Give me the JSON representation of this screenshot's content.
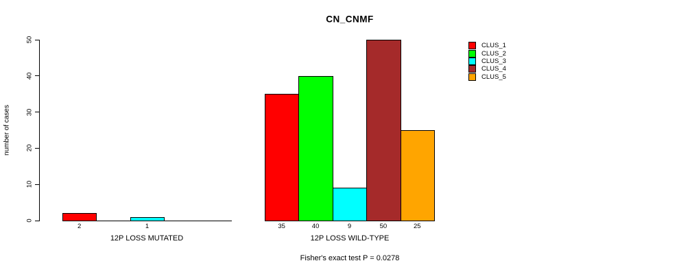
{
  "chart_data": {
    "type": "bar",
    "title": "CN_CNMF",
    "xlabel": "",
    "ylabel": "number of cases",
    "ylim": [
      0,
      50
    ],
    "yticks": [
      0,
      10,
      20,
      30,
      40,
      50
    ],
    "grid": false,
    "legend_position": "right",
    "categories": [
      "12P LOSS MUTATED",
      "12P LOSS WILD-TYPE"
    ],
    "series": [
      {
        "name": "CLUS_1",
        "color": "#FF0000",
        "values": [
          2,
          35
        ]
      },
      {
        "name": "CLUS_2",
        "color": "#00FF00",
        "values": [
          0,
          40
        ]
      },
      {
        "name": "CLUS_3",
        "color": "#00FFFF",
        "values": [
          1,
          9
        ]
      },
      {
        "name": "CLUS_4",
        "color": "#A52A2A",
        "values": [
          0,
          50
        ]
      },
      {
        "name": "CLUS_5",
        "color": "#FFA500",
        "values": [
          0,
          25
        ]
      }
    ],
    "bar_labels_shown": [
      "2",
      "1",
      "35",
      "40",
      "9",
      "50",
      "25"
    ],
    "annotation": "Fisher's exact test P = 0.0278"
  }
}
